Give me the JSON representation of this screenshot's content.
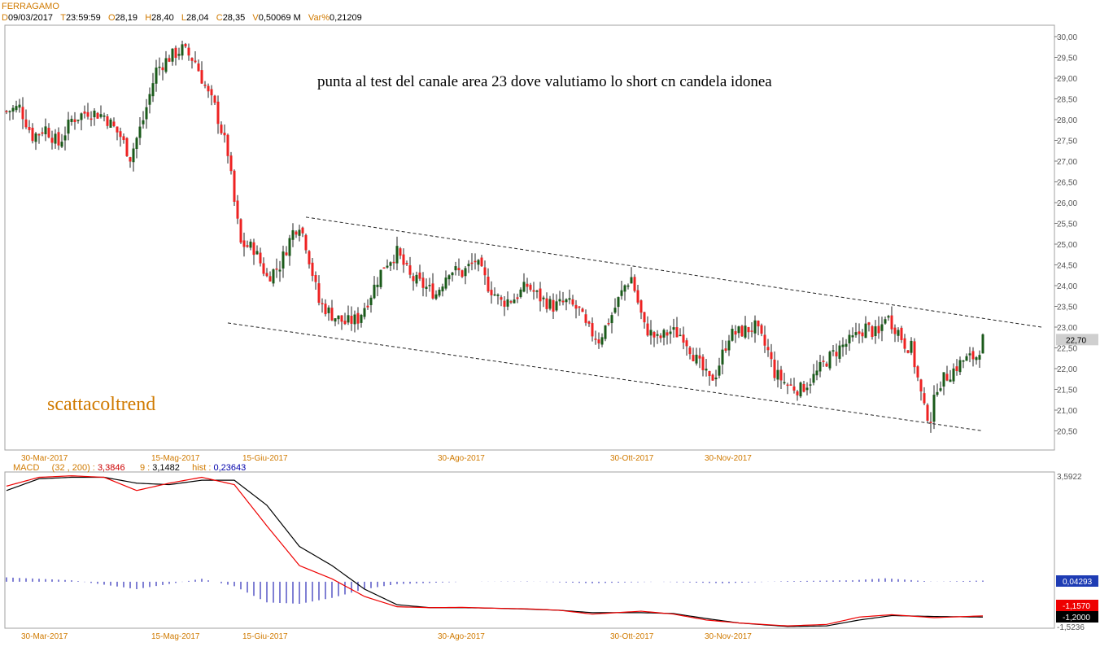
{
  "header": {
    "symbol": "FERRAGAMO",
    "fields": [
      {
        "label": "D",
        "value": "09/03/2017"
      },
      {
        "label": "T",
        "value": "23:59:59"
      },
      {
        "label": "O",
        "value": "28,19"
      },
      {
        "label": "H",
        "value": "28,40"
      },
      {
        "label": "L",
        "value": "28,04"
      },
      {
        "label": "C",
        "value": "28,35"
      },
      {
        "label": "V",
        "value": "0,50069 M"
      },
      {
        "label": "Var%",
        "value": "0,21209"
      }
    ]
  },
  "annotations": {
    "note": "punta al test del canale area 23 dove valutiamo lo short cn candela idonea",
    "watermark": "scattacoltrend"
  },
  "macd_header": {
    "label": "MACD",
    "params": "(32 , 200) :",
    "macd_value": "3,3846",
    "signal_label": "9 :",
    "signal_value": "3,1482",
    "hist_label": "hist :",
    "hist_value": "0,23643"
  },
  "colors": {
    "bull": "#1a5a1a",
    "bear": "#ee2222",
    "accent": "#d07a00",
    "macd_line": "#ee0000",
    "signal_line": "#000000",
    "hist": "#0000aa"
  },
  "chart_data": [
    {
      "type": "candlestick",
      "title": "FERRAGAMO",
      "xlabel": "",
      "ylabel": "",
      "x_ticks": [
        "30-Mar-2017",
        "15-Mag-2017",
        "15-Giu-2017",
        "30-Ago-2017",
        "30-Ott-2017",
        "30-Nov-2017"
      ],
      "x_tick_index": [
        12,
        52,
        80,
        140,
        193,
        222
      ],
      "y_ticks": [
        "30,00",
        "29,50",
        "29,00",
        "28,50",
        "28,00",
        "27,50",
        "27,00",
        "26,50",
        "26,00",
        "25,50",
        "25,00",
        "24,50",
        "24,00",
        "23,50",
        "23,00",
        "22,50",
        "22,00",
        "21,50",
        "21,00",
        "20,50"
      ],
      "ylim": [
        20.25,
        30.25
      ],
      "last_price_label": "22,70",
      "last_price": 22.7,
      "close_path": [
        [
          0,
          28.2
        ],
        [
          4,
          28.3
        ],
        [
          8,
          27.6
        ],
        [
          12,
          27.8
        ],
        [
          16,
          27.4
        ],
        [
          20,
          28.0
        ],
        [
          25,
          28.2
        ],
        [
          30,
          28.1
        ],
        [
          35,
          27.6
        ],
        [
          38,
          27.1
        ],
        [
          42,
          28.0
        ],
        [
          46,
          29.2
        ],
        [
          50,
          29.5
        ],
        [
          54,
          29.7
        ],
        [
          58,
          29.4
        ],
        [
          62,
          28.6
        ],
        [
          64,
          28.3
        ],
        [
          68,
          27.2
        ],
        [
          70,
          26.0
        ],
        [
          72,
          25.0
        ],
        [
          76,
          24.9
        ],
        [
          80,
          24.2
        ],
        [
          84,
          24.5
        ],
        [
          88,
          25.3
        ],
        [
          90,
          25.5
        ],
        [
          92,
          25.0
        ],
        [
          96,
          23.6
        ],
        [
          100,
          23.3
        ],
        [
          104,
          23.1
        ],
        [
          108,
          23.2
        ],
        [
          112,
          23.8
        ],
        [
          116,
          24.5
        ],
        [
          120,
          24.8
        ],
        [
          124,
          24.2
        ],
        [
          128,
          24.0
        ],
        [
          132,
          23.8
        ],
        [
          136,
          24.4
        ],
        [
          140,
          24.3
        ],
        [
          144,
          24.6
        ],
        [
          148,
          24.0
        ],
        [
          152,
          23.6
        ],
        [
          156,
          23.7
        ],
        [
          160,
          24.0
        ],
        [
          164,
          23.7
        ],
        [
          168,
          23.5
        ],
        [
          172,
          23.6
        ],
        [
          176,
          23.4
        ],
        [
          178,
          23.0
        ],
        [
          182,
          22.7
        ],
        [
          186,
          23.3
        ],
        [
          190,
          24.0
        ],
        [
          192,
          24.2
        ],
        [
          196,
          23.0
        ],
        [
          200,
          22.7
        ],
        [
          204,
          22.9
        ],
        [
          208,
          22.8
        ],
        [
          212,
          22.2
        ],
        [
          216,
          21.7
        ],
        [
          218,
          21.9
        ],
        [
          222,
          22.8
        ],
        [
          226,
          22.9
        ],
        [
          230,
          23.0
        ],
        [
          234,
          22.4
        ],
        [
          236,
          21.9
        ],
        [
          240,
          21.6
        ],
        [
          244,
          21.5
        ],
        [
          248,
          21.8
        ],
        [
          252,
          22.2
        ],
        [
          256,
          22.5
        ],
        [
          260,
          22.7
        ],
        [
          264,
          23.0
        ],
        [
          268,
          22.8
        ],
        [
          270,
          23.3
        ],
        [
          274,
          22.9
        ],
        [
          276,
          22.6
        ],
        [
          278,
          22.5
        ],
        [
          282,
          21.0
        ],
        [
          284,
          20.8
        ],
        [
          286,
          21.6
        ],
        [
          290,
          21.9
        ],
        [
          294,
          22.2
        ],
        [
          298,
          22.3
        ],
        [
          300,
          22.7
        ]
      ],
      "channel_upper": {
        "from": [
          92,
          25.65
        ],
        "to": [
          318,
          23.0
        ]
      },
      "channel_lower": {
        "from": [
          68,
          23.1
        ],
        "to": [
          300,
          20.5
        ]
      }
    },
    {
      "type": "line",
      "title": "MACD",
      "x_ticks": [
        "30-Mar-2017",
        "15-Mag-2017",
        "15-Giu-2017",
        "30-Ago-2017",
        "30-Ott-2017",
        "30-Nov-2017"
      ],
      "y_ticks": [
        "3,5922",
        "-1,5236"
      ],
      "ylim": [
        -1.5236,
        3.5922
      ],
      "value_labels": [
        "0,04293",
        "-1,1570",
        "-1,2000"
      ],
      "macd_path": [
        [
          0,
          3.25
        ],
        [
          10,
          3.55
        ],
        [
          20,
          3.6
        ],
        [
          30,
          3.55
        ],
        [
          40,
          3.1
        ],
        [
          50,
          3.35
        ],
        [
          60,
          3.55
        ],
        [
          70,
          3.3
        ],
        [
          80,
          1.9
        ],
        [
          90,
          0.55
        ],
        [
          100,
          0.1
        ],
        [
          110,
          -0.5
        ],
        [
          120,
          -0.85
        ],
        [
          130,
          -0.88
        ],
        [
          140,
          -0.87
        ],
        [
          150,
          -0.9
        ],
        [
          160,
          -0.92
        ],
        [
          170,
          -0.97
        ],
        [
          180,
          -1.1
        ],
        [
          195,
          -1.0
        ],
        [
          205,
          -1.1
        ],
        [
          215,
          -1.3
        ],
        [
          225,
          -1.4
        ],
        [
          240,
          -1.5
        ],
        [
          252,
          -1.45
        ],
        [
          262,
          -1.2
        ],
        [
          272,
          -1.12
        ],
        [
          285,
          -1.22
        ],
        [
          300,
          -1.16
        ]
      ],
      "signal_path": [
        [
          0,
          3.1
        ],
        [
          10,
          3.5
        ],
        [
          20,
          3.55
        ],
        [
          30,
          3.55
        ],
        [
          40,
          3.35
        ],
        [
          50,
          3.3
        ],
        [
          60,
          3.45
        ],
        [
          70,
          3.45
        ],
        [
          80,
          2.6
        ],
        [
          90,
          1.2
        ],
        [
          100,
          0.55
        ],
        [
          110,
          -0.25
        ],
        [
          120,
          -0.78
        ],
        [
          130,
          -0.88
        ],
        [
          140,
          -0.88
        ],
        [
          150,
          -0.9
        ],
        [
          160,
          -0.93
        ],
        [
          170,
          -0.97
        ],
        [
          180,
          -1.05
        ],
        [
          195,
          -1.05
        ],
        [
          205,
          -1.08
        ],
        [
          215,
          -1.25
        ],
        [
          225,
          -1.4
        ],
        [
          240,
          -1.52
        ],
        [
          252,
          -1.5
        ],
        [
          262,
          -1.3
        ],
        [
          272,
          -1.15
        ],
        [
          285,
          -1.18
        ],
        [
          300,
          -1.2
        ]
      ],
      "hist_path": [
        [
          0,
          0.15
        ],
        [
          20,
          0.05
        ],
        [
          40,
          -0.25
        ],
        [
          60,
          0.1
        ],
        [
          70,
          -0.15
        ],
        [
          80,
          -0.7
        ],
        [
          90,
          -0.75
        ],
        [
          100,
          -0.55
        ],
        [
          110,
          -0.25
        ],
        [
          120,
          -0.08
        ],
        [
          140,
          0.0
        ],
        [
          160,
          0.01
        ],
        [
          180,
          -0.05
        ],
        [
          200,
          0.0
        ],
        [
          220,
          -0.05
        ],
        [
          240,
          0.02
        ],
        [
          260,
          0.05
        ],
        [
          270,
          0.12
        ],
        [
          285,
          0.0
        ],
        [
          300,
          0.04
        ]
      ]
    }
  ]
}
